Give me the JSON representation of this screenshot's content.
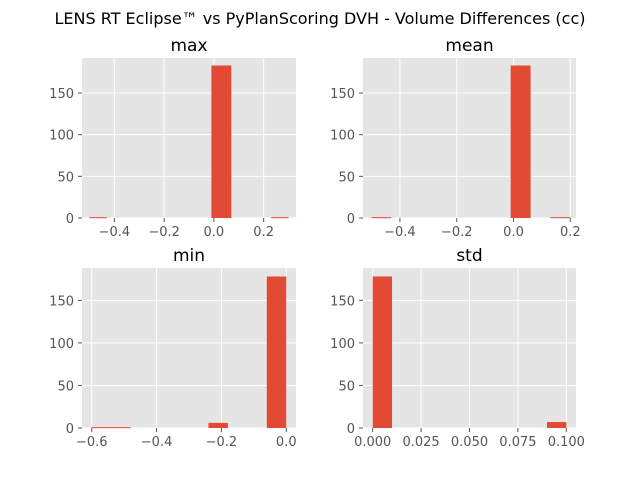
{
  "figure": {
    "title": "LENS RT Eclipse™ vs PyPlanScoring DVH - Volume Differences (cc)"
  },
  "style": {
    "background": "#ffffff",
    "axes_face": "#e5e5e5",
    "grid": "#ffffff",
    "bar": "#e24a33",
    "tick_label": "#555555"
  },
  "chart_data": [
    {
      "type": "bar",
      "title": "max",
      "xlim": [
        -0.53,
        0.33
      ],
      "ylim": [
        0,
        192
      ],
      "xticks": [
        -0.4,
        -0.2,
        0.0,
        0.2
      ],
      "xtick_labels": [
        "−0.4",
        "−0.2",
        "0.0",
        "0.2"
      ],
      "yticks": [
        0,
        50,
        100,
        150
      ],
      "ytick_labels": [
        "0",
        "50",
        "100",
        "150"
      ],
      "bins": [
        {
          "x0": -0.5,
          "x1": -0.43,
          "count": 1
        },
        {
          "x0": -0.01,
          "x1": 0.07,
          "count": 183
        },
        {
          "x0": 0.23,
          "x1": 0.3,
          "count": 1
        }
      ],
      "grid": true
    },
    {
      "type": "bar",
      "title": "mean",
      "xlim": [
        -0.53,
        0.22
      ],
      "ylim": [
        0,
        192
      ],
      "xticks": [
        -0.4,
        -0.2,
        0.0,
        0.2
      ],
      "xtick_labels": [
        "−0.4",
        "−0.2",
        "0.0",
        "0.2"
      ],
      "yticks": [
        0,
        50,
        100,
        150
      ],
      "ytick_labels": [
        "0",
        "50",
        "100",
        "150"
      ],
      "bins": [
        {
          "x0": -0.5,
          "x1": -0.43,
          "count": 1
        },
        {
          "x0": -0.01,
          "x1": 0.06,
          "count": 183
        },
        {
          "x0": 0.13,
          "x1": 0.2,
          "count": 1
        }
      ],
      "grid": true
    },
    {
      "type": "bar",
      "title": "min",
      "xlim": [
        -0.63,
        0.03
      ],
      "ylim": [
        0,
        188
      ],
      "xticks": [
        -0.6,
        -0.4,
        -0.2,
        0.0
      ],
      "xtick_labels": [
        "−0.6",
        "−0.4",
        "−0.2",
        "0.0"
      ],
      "yticks": [
        0,
        50,
        100,
        150
      ],
      "ytick_labels": [
        "0",
        "50",
        "100",
        "150"
      ],
      "bins": [
        {
          "x0": -0.6,
          "x1": -0.48,
          "count": 1
        },
        {
          "x0": -0.24,
          "x1": -0.18,
          "count": 6
        },
        {
          "x0": -0.06,
          "x1": 0.0,
          "count": 178
        }
      ],
      "grid": true
    },
    {
      "type": "bar",
      "title": "std",
      "xlim": [
        -0.005,
        0.105
      ],
      "ylim": [
        0,
        188
      ],
      "xticks": [
        0.0,
        0.025,
        0.05,
        0.075,
        0.1
      ],
      "xtick_labels": [
        "0.000",
        "0.025",
        "0.050",
        "0.075",
        "0.100"
      ],
      "yticks": [
        0,
        50,
        100,
        150
      ],
      "ytick_labels": [
        "0",
        "50",
        "100",
        "150"
      ],
      "bins": [
        {
          "x0": 0.0,
          "x1": 0.01,
          "count": 178
        },
        {
          "x0": 0.09,
          "x1": 0.1,
          "count": 7
        }
      ],
      "grid": true
    }
  ]
}
